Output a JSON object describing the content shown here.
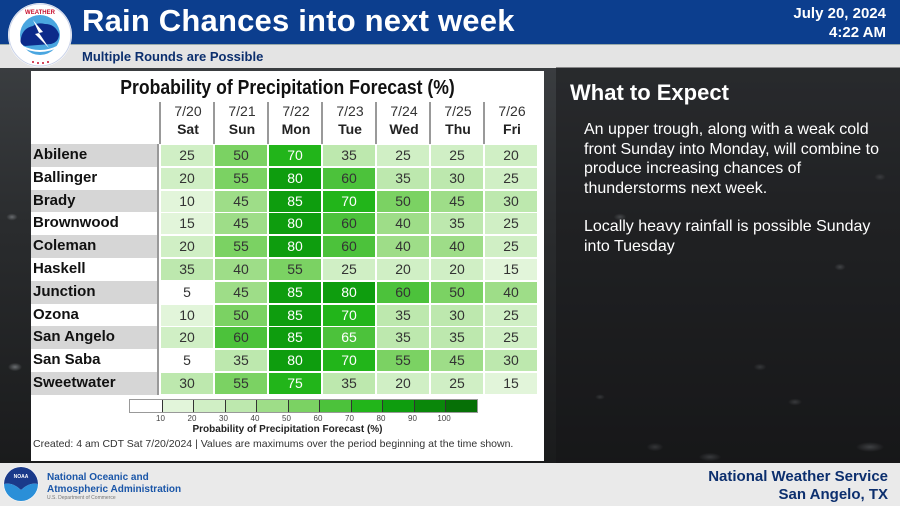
{
  "header": {
    "title": "Rain Chances into next week",
    "subtitle": "Multiple Rounds are Possible",
    "date": "July 20, 2024",
    "time": "4:22 AM",
    "logo_lettering": "NATIONAL WEATHER SERVICE"
  },
  "table": {
    "title": "Probability of Precipitation Forecast (%)",
    "columns": [
      {
        "date": "7/20",
        "day": "Sat"
      },
      {
        "date": "7/21",
        "day": "Sun"
      },
      {
        "date": "7/22",
        "day": "Mon"
      },
      {
        "date": "7/23",
        "day": "Tue"
      },
      {
        "date": "7/24",
        "day": "Wed"
      },
      {
        "date": "7/25",
        "day": "Thu"
      },
      {
        "date": "7/26",
        "day": "Fri"
      }
    ],
    "rows": [
      {
        "name": "Abilene",
        "values": [
          25,
          50,
          70,
          35,
          25,
          25,
          20
        ]
      },
      {
        "name": "Ballinger",
        "values": [
          20,
          55,
          80,
          60,
          35,
          30,
          25
        ]
      },
      {
        "name": "Brady",
        "values": [
          10,
          45,
          85,
          70,
          50,
          45,
          30
        ]
      },
      {
        "name": "Brownwood",
        "values": [
          15,
          45,
          80,
          60,
          40,
          35,
          25
        ]
      },
      {
        "name": "Coleman",
        "values": [
          20,
          55,
          80,
          60,
          40,
          40,
          25
        ]
      },
      {
        "name": "Haskell",
        "values": [
          35,
          40,
          55,
          25,
          20,
          20,
          15
        ]
      },
      {
        "name": "Junction",
        "values": [
          5,
          45,
          85,
          80,
          60,
          50,
          40
        ]
      },
      {
        "name": "Ozona",
        "values": [
          10,
          50,
          85,
          70,
          35,
          30,
          25
        ]
      },
      {
        "name": "San Angelo",
        "values": [
          20,
          60,
          85,
          65,
          35,
          35,
          25
        ]
      },
      {
        "name": "San Saba",
        "values": [
          5,
          35,
          80,
          70,
          55,
          45,
          30
        ]
      },
      {
        "name": "Sweetwater",
        "values": [
          30,
          55,
          75,
          35,
          20,
          25,
          15
        ]
      }
    ],
    "legend": {
      "ticks": [
        "10",
        "20",
        "30",
        "40",
        "50",
        "60",
        "70",
        "80",
        "90",
        "100"
      ],
      "colors": [
        "#ffffff",
        "#e2f5da",
        "#d0efc5",
        "#bde8ae",
        "#9edd88",
        "#7bd263",
        "#4cc23b",
        "#22b51a",
        "#0e9d0e",
        "#0a870a",
        "#067006"
      ],
      "title": "Probability of Precipitation Forecast (%)"
    },
    "footnote": "Created: 4 am CDT Sat 7/20/2024  |  Values are maximums over the period beginning at the time shown."
  },
  "expect": {
    "title": "What to Expect",
    "paragraphs": [
      "An upper trough, along with a weak cold front Sunday into Monday,  will combine to produce increasing chances of thunderstorms next week.",
      "Locally heavy rainfall is possible Sunday into Tuesday"
    ]
  },
  "footer": {
    "noaa_line1": "National Oceanic and",
    "noaa_line2": "Atmospheric Administration",
    "noaa_line3": "U.S. Department of Commerce",
    "noaa_logo_lettering": "NOAA",
    "nws_line1": "National Weather Service",
    "nws_line2": "San Angelo, TX"
  },
  "colors": {
    "header_blue": "#0c3e8e",
    "footer_text": "#0c2f6e"
  }
}
